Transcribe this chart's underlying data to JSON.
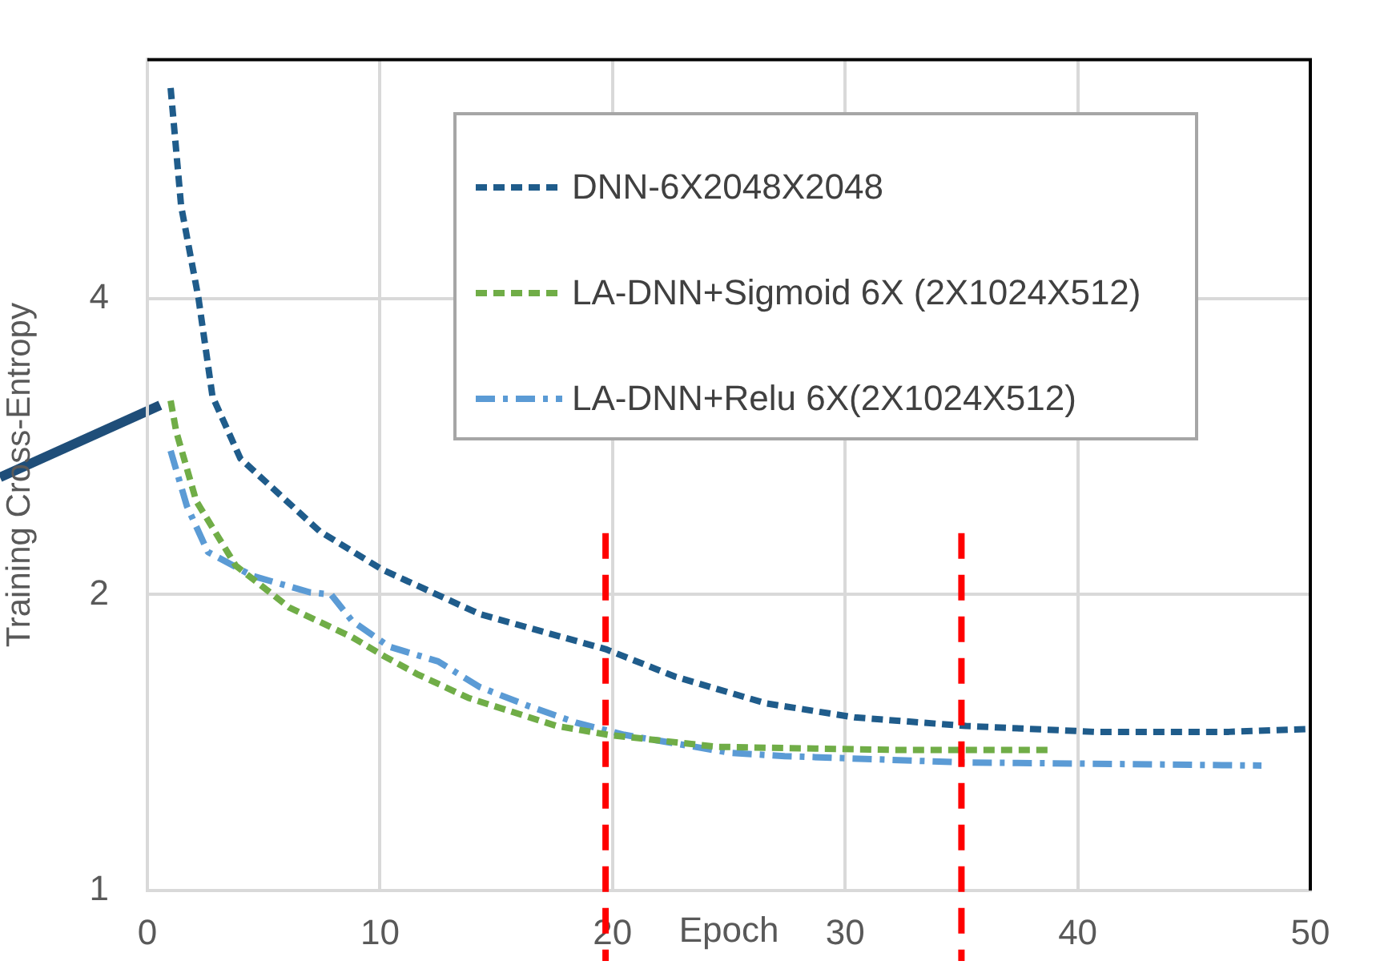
{
  "chart_data": {
    "type": "line",
    "ylabel": "Training Cross-Entropy",
    "xlabel": "Epoch",
    "xlim": [
      0,
      50
    ],
    "xticks": [
      0,
      10,
      20,
      30,
      40,
      50
    ],
    "ylim": [
      1,
      7
    ],
    "yticks": [
      1,
      2,
      4
    ],
    "log": "y",
    "grid": true,
    "legend": "top right",
    "marker": "none",
    "line_style": "dashed",
    "series": [
      {
        "name": "DNN-6X2048X2048",
        "color": "#1f5c8b",
        "x": [
          1,
          1.45,
          2.2,
          2.8,
          4.0,
          7.4,
          10.1,
          14.3,
          19.7,
          22.7,
          26.6,
          30.4,
          35.2,
          40.7,
          46.5,
          50
        ],
        "values": [
          6.55,
          4.97,
          4.0,
          3.18,
          2.75,
          2.32,
          2.12,
          1.91,
          1.76,
          1.65,
          1.55,
          1.5,
          1.47,
          1.45,
          1.45,
          1.46
        ]
      },
      {
        "name": "LA-DNN+Sigmoid 6X (2X1024X512)",
        "color": "#70ad47",
        "x": [
          1,
          1.24,
          2.1,
          3.8,
          6.1,
          8.8,
          10.2,
          11.6,
          13.8,
          17.6,
          19.8,
          24.5,
          32,
          38.9
        ],
        "values": [
          3.15,
          2.93,
          2.49,
          2.14,
          1.94,
          1.81,
          1.73,
          1.66,
          1.57,
          1.47,
          1.44,
          1.4,
          1.39,
          1.39
        ]
      },
      {
        "name": "LA-DNN+Relu 6X(2X1024X512)",
        "color": "#5b9bd5",
        "line_style": "dashdot",
        "x": [
          1,
          1.7,
          2.6,
          4.5,
          7.0,
          7.9,
          8.8,
          10.4,
          12.5,
          14.3,
          16.4,
          18.5,
          20.5,
          25.1,
          27.4,
          35,
          47.9
        ],
        "values": [
          2.8,
          2.46,
          2.21,
          2.09,
          2.01,
          2.0,
          1.88,
          1.77,
          1.71,
          1.61,
          1.54,
          1.48,
          1.44,
          1.38,
          1.37,
          1.35,
          1.34
        ]
      }
    ],
    "ref_lines": [
      {
        "axis": "x",
        "value": 19.7,
        "color": "#ff0000",
        "line_style": "dashed"
      },
      {
        "axis": "x",
        "value": 35,
        "color": "#ff0000",
        "line_style": "dashed"
      }
    ]
  }
}
